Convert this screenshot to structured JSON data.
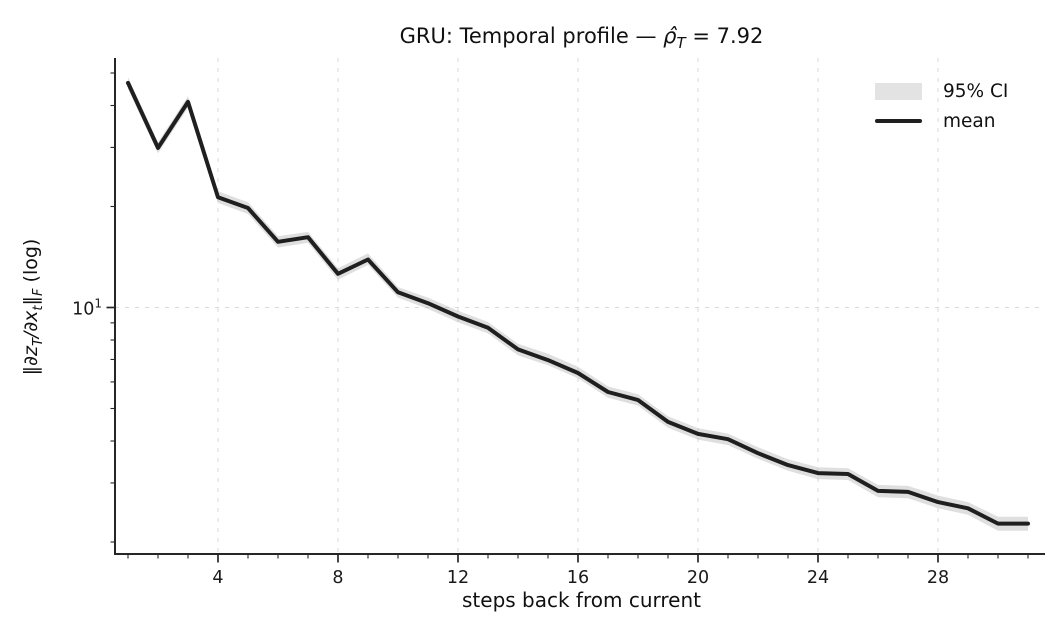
{
  "title_parts": {
    "prefix": "GRU: Temporal profile — ",
    "rho_hat": "ρ̂",
    "sub": "T",
    "suffix": " = 7.92"
  },
  "y_tick": {
    "base": "10",
    "exp": "1"
  },
  "ylabel_parts": [
    {
      "text": "‖∂z",
      "sub": "T"
    },
    {
      "text": "/∂x",
      "sub": "t"
    },
    {
      "text": "‖",
      "sub": "F"
    },
    {
      "text": " (log)",
      "sub": ""
    }
  ],
  "chart_data": {
    "type": "line",
    "title": "GRU: Temporal profile — ρ̂_T = 7.92",
    "xlabel": "steps back from current",
    "ylabel": "‖∂z_T/∂x_t‖_F (log)",
    "yscale": "log",
    "xlim": [
      0.5,
      31.6
    ],
    "ylim": [
      1.8,
      55
    ],
    "grid": "major-dashed",
    "legend_position": "upper-right-frameless",
    "x_major_ticks": [
      4,
      8,
      12,
      16,
      20,
      24,
      28
    ],
    "x_minor_tick_step": 1,
    "y_major_ticks": [
      10
    ],
    "y_minor_ticks": [
      2,
      3,
      4,
      5,
      6,
      7,
      8,
      9,
      20,
      30,
      40,
      50
    ],
    "legend": [
      {
        "label": "95% CI",
        "swatch": "patch",
        "color": "#e3e3e3"
      },
      {
        "label": "mean",
        "swatch": "line",
        "color": "#1f1f1f"
      }
    ],
    "x": [
      1,
      2,
      3,
      4,
      5,
      6,
      7,
      8,
      9,
      10,
      11,
      12,
      13,
      14,
      15,
      16,
      17,
      18,
      19,
      20,
      21,
      22,
      23,
      24,
      25,
      26,
      27,
      28,
      29,
      30,
      31
    ],
    "series": [
      {
        "name": "mean",
        "values": [
          46.7,
          29.9,
          41.0,
          21.3,
          19.8,
          15.7,
          16.2,
          12.6,
          13.9,
          11.1,
          10.3,
          9.4,
          8.7,
          7.5,
          6.97,
          6.38,
          5.6,
          5.3,
          4.56,
          4.2,
          4.05,
          3.68,
          3.39,
          3.21,
          3.19,
          2.84,
          2.82,
          2.63,
          2.52,
          2.27,
          2.27
        ]
      }
    ],
    "ci_upper": [
      48.6,
      31.1,
      42.6,
      22.2,
      20.6,
      16.3,
      16.8,
      13.1,
      14.5,
      11.5,
      10.7,
      9.78,
      9.05,
      7.8,
      7.28,
      6.66,
      5.82,
      5.51,
      4.74,
      4.37,
      4.21,
      3.83,
      3.53,
      3.34,
      3.32,
      2.96,
      2.94,
      2.75,
      2.63,
      2.38,
      2.38
    ],
    "ci_lower": [
      44.9,
      28.8,
      39.4,
      20.5,
      19.0,
      15.1,
      15.6,
      12.1,
      13.4,
      10.7,
      9.9,
      9.04,
      8.37,
      7.2,
      6.73,
      6.15,
      5.38,
      5.1,
      4.38,
      4.04,
      3.89,
      3.54,
      3.26,
      3.08,
      3.06,
      2.72,
      2.7,
      2.52,
      2.41,
      2.16,
      2.16
    ],
    "colors": {
      "mean": "#1f1f1f",
      "ci": "#dddddd",
      "grid": "#d9d9d9",
      "spine": "#262626",
      "text": "#1a1a1a"
    }
  }
}
